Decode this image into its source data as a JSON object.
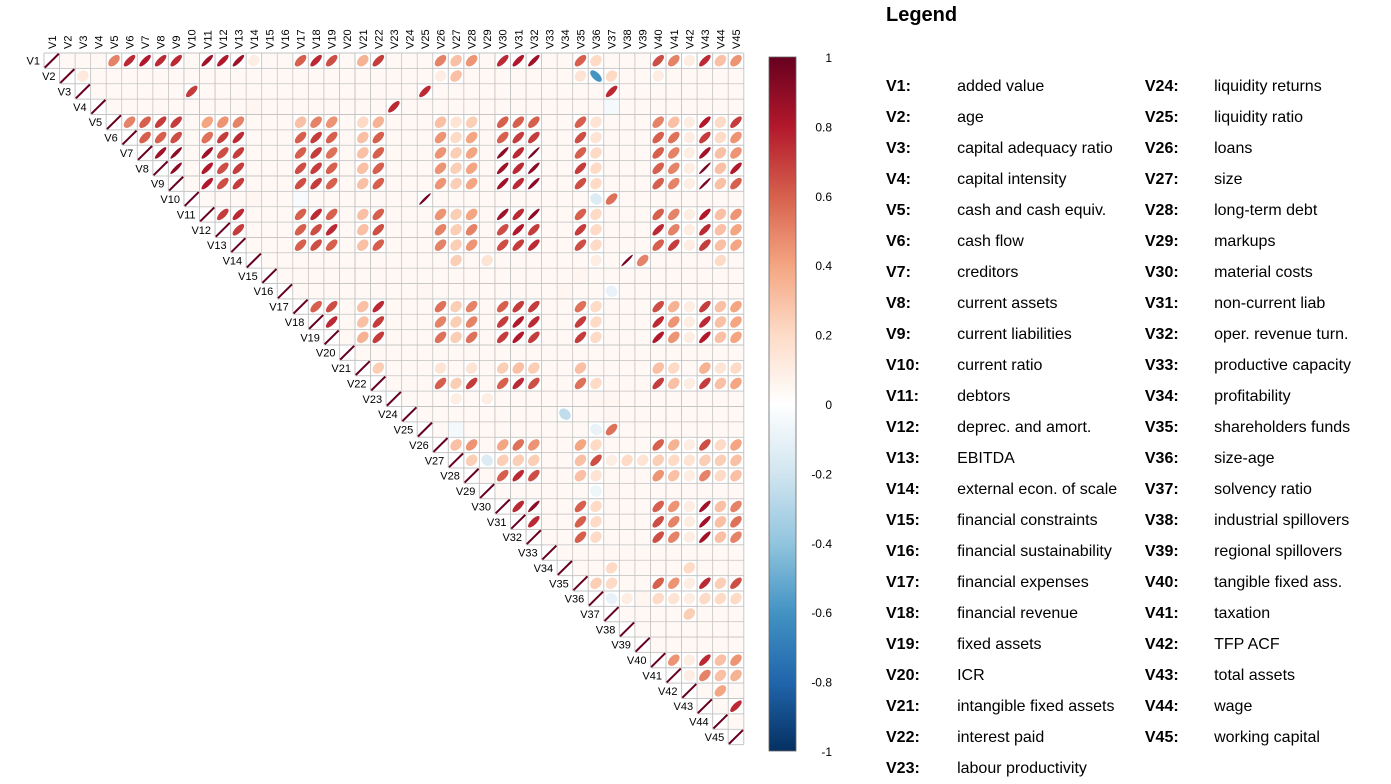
{
  "legend": {
    "title": "Legend",
    "entries": [
      {
        "code": "V1:",
        "label": "added value"
      },
      {
        "code": "V2:",
        "label": "age"
      },
      {
        "code": "V3:",
        "label": "capital adequacy ratio"
      },
      {
        "code": "V4:",
        "label": "capital intensity"
      },
      {
        "code": "V5:",
        "label": "cash and cash equiv."
      },
      {
        "code": "V6:",
        "label": "cash flow"
      },
      {
        "code": "V7:",
        "label": "creditors"
      },
      {
        "code": "V8:",
        "label": "current assets"
      },
      {
        "code": "V9:",
        "label": "current liabilities"
      },
      {
        "code": "V10:",
        "label": "current ratio"
      },
      {
        "code": "V11:",
        "label": "debtors"
      },
      {
        "code": "V12:",
        "label": "deprec. and amort."
      },
      {
        "code": "V13:",
        "label": "EBITDA"
      },
      {
        "code": "V14:",
        "label": "external econ. of scale"
      },
      {
        "code": "V15:",
        "label": "financial constraints"
      },
      {
        "code": "V16:",
        "label": "financial sustainability"
      },
      {
        "code": "V17:",
        "label": "financial expenses"
      },
      {
        "code": "V18:",
        "label": "financial revenue"
      },
      {
        "code": "V19:",
        "label": "fixed assets"
      },
      {
        "code": "V20:",
        "label": "ICR"
      },
      {
        "code": "V21:",
        "label": "intangible fixed assets"
      },
      {
        "code": "V22:",
        "label": "interest paid"
      },
      {
        "code": "V23:",
        "label": "labour productivity"
      },
      {
        "code": "V24:",
        "label": "liquidity returns"
      },
      {
        "code": "V25:",
        "label": "liquidity ratio"
      },
      {
        "code": "V26:",
        "label": "loans"
      },
      {
        "code": "V27:",
        "label": "size"
      },
      {
        "code": "V28:",
        "label": "long-term debt"
      },
      {
        "code": "V29:",
        "label": "markups"
      },
      {
        "code": "V30:",
        "label": "material costs"
      },
      {
        "code": "V31:",
        "label": "non-current liab"
      },
      {
        "code": "V32:",
        "label": "oper. revenue turn."
      },
      {
        "code": "V33:",
        "label": "productive capacity"
      },
      {
        "code": "V34:",
        "label": "profitability"
      },
      {
        "code": "V35:",
        "label": "shareholders funds"
      },
      {
        "code": "V36:",
        "label": "size-age"
      },
      {
        "code": "V37:",
        "label": "solvency ratio"
      },
      {
        "code": "V38:",
        "label": "industrial spillovers"
      },
      {
        "code": "V39:",
        "label": "regional spillovers"
      },
      {
        "code": "V40:",
        "label": "tangible fixed ass."
      },
      {
        "code": "V41:",
        "label": "taxation"
      },
      {
        "code": "V42:",
        "label": "TFP ACF"
      },
      {
        "code": "V43:",
        "label": "total assets"
      },
      {
        "code": "V44:",
        "label": "wage"
      },
      {
        "code": "V45:",
        "label": "working capital"
      }
    ]
  },
  "chart_data": {
    "type": "heatmap",
    "subtype": "correlation-ellipse-upper-triangle",
    "variables": [
      "V1",
      "V2",
      "V3",
      "V4",
      "V5",
      "V6",
      "V7",
      "V8",
      "V9",
      "V10",
      "V11",
      "V12",
      "V13",
      "V14",
      "V15",
      "V16",
      "V17",
      "V18",
      "V19",
      "V20",
      "V21",
      "V22",
      "V23",
      "V24",
      "V25",
      "V26",
      "V27",
      "V28",
      "V29",
      "V30",
      "V31",
      "V32",
      "V33",
      "V34",
      "V35",
      "V36",
      "V37",
      "V38",
      "V39",
      "V40",
      "V41",
      "V42",
      "V43",
      "V44",
      "V45"
    ],
    "diagonal": 1,
    "default_value": 0.04,
    "correlations": {
      "V1": {
        "V5": 0.5,
        "V6": 0.75,
        "V7": 0.8,
        "V8": 0.75,
        "V9": 0.75,
        "V11": 0.85,
        "V12": 0.8,
        "V13": 0.85,
        "V14": 0.1,
        "V17": 0.6,
        "V18": 0.75,
        "V19": 0.65,
        "V21": 0.35,
        "V22": 0.7,
        "V26": 0.5,
        "V27": 0.3,
        "V28": 0.45,
        "V30": 0.75,
        "V31": 0.8,
        "V32": 0.85,
        "V35": 0.6,
        "V36": 0.2,
        "V40": 0.65,
        "V41": 0.5,
        "V42": 0.1,
        "V43": 0.75,
        "V44": 0.3,
        "V45": 0.45
      },
      "V2": {
        "V3": 0.12,
        "V26": 0.1,
        "V27": 0.3,
        "V35": 0.15,
        "V36": -0.6,
        "V37": 0.2,
        "V40": 0.1
      },
      "V3": {
        "V10": 0.7,
        "V25": 0.75,
        "V37": 0.75
      },
      "V4": {
        "V14": 0.05,
        "V23": 0.75,
        "V37": -0.05
      },
      "V5": {
        "V6": 0.5,
        "V7": 0.6,
        "V8": 0.7,
        "V9": 0.7,
        "V11": 0.4,
        "V12": 0.45,
        "V13": 0.5,
        "V17": 0.3,
        "V18": 0.5,
        "V19": 0.45,
        "V21": 0.2,
        "V22": 0.35,
        "V26": 0.3,
        "V27": 0.15,
        "V28": 0.25,
        "V30": 0.6,
        "V31": 0.6,
        "V32": 0.6,
        "V35": 0.6,
        "V36": 0.15,
        "V40": 0.5,
        "V41": 0.3,
        "V42": 0.1,
        "V43": 0.8,
        "V44": 0.2,
        "V45": 0.7
      },
      "V6": {
        "V7": 0.6,
        "V8": 0.6,
        "V9": 0.65,
        "V11": 0.55,
        "V12": 0.7,
        "V13": 0.75,
        "V17": 0.6,
        "V18": 0.7,
        "V19": 0.6,
        "V21": 0.3,
        "V22": 0.6,
        "V26": 0.45,
        "V27": 0.2,
        "V28": 0.4,
        "V30": 0.6,
        "V31": 0.7,
        "V32": 0.7,
        "V35": 0.65,
        "V36": 0.15,
        "V40": 0.6,
        "V41": 0.55,
        "V42": 0.1,
        "V43": 0.7,
        "V44": 0.2,
        "V45": 0.45
      },
      "V7": {
        "V8": 0.85,
        "V9": 0.9,
        "V11": 0.85,
        "V12": 0.65,
        "V13": 0.7,
        "V17": 0.6,
        "V18": 0.7,
        "V19": 0.55,
        "V21": 0.3,
        "V22": 0.6,
        "V26": 0.45,
        "V27": 0.25,
        "V28": 0.4,
        "V30": 0.9,
        "V31": 0.75,
        "V32": 0.95,
        "V35": 0.6,
        "V36": 0.2,
        "V40": 0.6,
        "V41": 0.5,
        "V42": 0.1,
        "V43": 0.85,
        "V44": 0.3,
        "V45": 0.45
      },
      "V8": {
        "V9": 0.9,
        "V11": 0.8,
        "V12": 0.65,
        "V13": 0.7,
        "V17": 0.65,
        "V18": 0.7,
        "V19": 0.6,
        "V21": 0.3,
        "V22": 0.6,
        "V26": 0.45,
        "V27": 0.25,
        "V28": 0.4,
        "V30": 0.85,
        "V31": 0.75,
        "V32": 0.9,
        "V35": 0.7,
        "V36": 0.2,
        "V40": 0.6,
        "V41": 0.5,
        "V42": 0.1,
        "V43": 0.95,
        "V44": 0.3,
        "V45": 0.8
      },
      "V9": {
        "V11": 0.8,
        "V12": 0.65,
        "V13": 0.7,
        "V17": 0.65,
        "V18": 0.7,
        "V19": 0.6,
        "V21": 0.3,
        "V22": 0.6,
        "V26": 0.45,
        "V27": 0.25,
        "V28": 0.4,
        "V30": 0.85,
        "V31": 0.75,
        "V32": 0.9,
        "V35": 0.65,
        "V36": 0.2,
        "V40": 0.6,
        "V41": 0.5,
        "V42": 0.1,
        "V43": 0.95,
        "V44": 0.3,
        "V45": 0.6
      },
      "V10": {
        "V14": 0.05,
        "V17": -0.03,
        "V25": 0.95,
        "V36": -0.15,
        "V37": 0.55
      },
      "V11": {
        "V12": 0.7,
        "V13": 0.75,
        "V17": 0.6,
        "V18": 0.75,
        "V19": 0.6,
        "V21": 0.3,
        "V22": 0.6,
        "V26": 0.45,
        "V27": 0.25,
        "V28": 0.4,
        "V30": 0.85,
        "V31": 0.75,
        "V32": 0.9,
        "V35": 0.6,
        "V36": 0.2,
        "V40": 0.6,
        "V41": 0.5,
        "V42": 0.1,
        "V43": 0.8,
        "V44": 0.3,
        "V45": 0.45
      },
      "V12": {
        "V13": 0.7,
        "V17": 0.6,
        "V18": 0.65,
        "V19": 0.75,
        "V21": 0.3,
        "V22": 0.65,
        "V26": 0.5,
        "V27": 0.25,
        "V28": 0.5,
        "V30": 0.65,
        "V31": 0.8,
        "V32": 0.7,
        "V35": 0.7,
        "V36": 0.2,
        "V40": 0.75,
        "V41": 0.5,
        "V42": 0.1,
        "V43": 0.75,
        "V44": 0.3,
        "V45": 0.4
      },
      "V13": {
        "V17": 0.6,
        "V18": 0.65,
        "V19": 0.6,
        "V21": 0.3,
        "V22": 0.6,
        "V26": 0.5,
        "V27": 0.25,
        "V28": 0.45,
        "V30": 0.65,
        "V31": 0.7,
        "V32": 0.75,
        "V35": 0.65,
        "V36": 0.2,
        "V40": 0.6,
        "V41": 0.7,
        "V42": 0.1,
        "V43": 0.7,
        "V44": 0.3,
        "V45": 0.4
      },
      "V14": {
        "V27": 0.25,
        "V29": 0.15,
        "V36": 0.1,
        "V38": 0.95,
        "V39": 0.5,
        "V44": 0.2
      },
      "V15": {
        "V35": 0.05
      },
      "V16": {
        "V25": 0.05,
        "V34": 0.05,
        "V37": -0.1
      },
      "V17": {
        "V18": 0.6,
        "V19": 0.65,
        "V21": 0.3,
        "V22": 0.75,
        "V26": 0.55,
        "V27": 0.25,
        "V28": 0.5,
        "V30": 0.6,
        "V31": 0.7,
        "V32": 0.7,
        "V35": 0.55,
        "V36": 0.2,
        "V40": 0.65,
        "V41": 0.35,
        "V42": 0.1,
        "V43": 0.7,
        "V44": 0.3,
        "V45": 0.4
      },
      "V18": {
        "V19": 0.75,
        "V21": 0.3,
        "V22": 0.7,
        "V26": 0.5,
        "V27": 0.25,
        "V28": 0.5,
        "V30": 0.7,
        "V31": 0.8,
        "V32": 0.75,
        "V35": 0.7,
        "V36": 0.2,
        "V40": 0.75,
        "V41": 0.45,
        "V42": 0.1,
        "V43": 0.75,
        "V44": 0.3,
        "V45": 0.4
      },
      "V19": {
        "V21": 0.35,
        "V22": 0.7,
        "V26": 0.55,
        "V27": 0.25,
        "V28": 0.55,
        "V30": 0.7,
        "V31": 0.8,
        "V32": 0.7,
        "V35": 0.7,
        "V36": 0.2,
        "V40": 0.8,
        "V41": 0.45,
        "V42": 0.1,
        "V43": 0.8,
        "V44": 0.3,
        "V45": 0.4
      },
      "V21": {
        "V22": 0.25,
        "V26": 0.15,
        "V28": 0.15,
        "V30": 0.25,
        "V31": 0.3,
        "V32": 0.25,
        "V35": 0.3,
        "V40": 0.3,
        "V41": 0.2,
        "V43": 0.35,
        "V44": 0.15,
        "V45": 0.2
      },
      "V22": {
        "V26": 0.6,
        "V27": 0.25,
        "V28": 0.7,
        "V30": 0.6,
        "V31": 0.75,
        "V32": 0.65,
        "V35": 0.55,
        "V36": 0.2,
        "V40": 0.7,
        "V41": 0.3,
        "V42": 0.1,
        "V43": 0.7,
        "V44": 0.3,
        "V45": 0.4
      },
      "V23": {
        "V27": 0.1,
        "V29": 0.1,
        "V36": 0.05,
        "V37": 0.05
      },
      "V24": {
        "V34": -0.25,
        "V37": 0.05
      },
      "V25": {
        "V27": -0.05,
        "V36": -0.1,
        "V37": 0.55
      },
      "V26": {
        "V27": 0.3,
        "V28": 0.45,
        "V30": 0.4,
        "V31": 0.55,
        "V32": 0.45,
        "V35": 0.4,
        "V36": 0.2,
        "V40": 0.6,
        "V41": 0.35,
        "V42": 0.1,
        "V43": 0.65,
        "V44": 0.2,
        "V45": 0.4
      },
      "V27": {
        "V28": 0.25,
        "V29": -0.15,
        "V30": 0.25,
        "V31": 0.25,
        "V32": 0.25,
        "V35": 0.3,
        "V36": 0.65,
        "V37": 0.1,
        "V38": 0.2,
        "V39": 0.15,
        "V40": 0.25,
        "V41": 0.2,
        "V42": 0.15,
        "V43": 0.25,
        "V44": 0.25,
        "V45": 0.3
      },
      "V28": {
        "V30": 0.6,
        "V31": 0.75,
        "V32": 0.65,
        "V35": 0.3,
        "V36": 0.15,
        "V40": 0.45,
        "V41": 0.3,
        "V42": 0.1,
        "V43": 0.5,
        "V44": 0.2,
        "V45": 0.3
      },
      "V29": {
        "V36": -0.08,
        "V37": 0.05
      },
      "V30": {
        "V31": 0.75,
        "V32": 0.9,
        "V35": 0.6,
        "V36": 0.2,
        "V40": 0.6,
        "V41": 0.45,
        "V42": 0.1,
        "V43": 0.85,
        "V44": 0.3,
        "V45": 0.5
      },
      "V31": {
        "V32": 0.75,
        "V35": 0.6,
        "V36": 0.2,
        "V40": 0.65,
        "V41": 0.5,
        "V42": 0.1,
        "V43": 0.85,
        "V44": 0.3,
        "V45": 0.55
      },
      "V32": {
        "V35": 0.6,
        "V36": 0.2,
        "V40": 0.65,
        "V41": 0.5,
        "V42": 0.1,
        "V43": 0.85,
        "V44": 0.3,
        "V45": 0.5
      },
      "V34": {
        "V37": 0.2,
        "V42": 0.2
      },
      "V35": {
        "V36": 0.25,
        "V37": 0.2,
        "V40": 0.6,
        "V41": 0.45,
        "V42": 0.1,
        "V43": 0.75,
        "V44": 0.25,
        "V45": 0.65
      },
      "V36": {
        "V37": -0.1,
        "V38": 0.1,
        "V39": 0.05,
        "V40": 0.2,
        "V41": 0.15,
        "V42": 0.1,
        "V43": 0.2,
        "V44": 0.2,
        "V45": 0.2
      },
      "V37": {
        "V42": 0.25
      },
      "V40": {
        "V41": 0.45,
        "V42": 0.1,
        "V43": 0.75,
        "V44": 0.3,
        "V45": 0.45
      },
      "V41": {
        "V42": 0.1,
        "V43": 0.5,
        "V44": 0.3,
        "V45": 0.35
      },
      "V42": {
        "V44": 0.4
      },
      "V43": {
        "V45": 0.75
      }
    },
    "colorbar": {
      "ticks": [
        1,
        0.8,
        0.6,
        0.4,
        0.2,
        0,
        -0.2,
        -0.4,
        -0.6,
        -0.8,
        -1
      ],
      "tick_labels": [
        "1",
        "0.8",
        "0.6",
        "0.4",
        "0.2",
        "0",
        "-0.2",
        "-0.4",
        "-0.6",
        "-0.8",
        "-1"
      ],
      "colors": [
        "#67001F",
        "#B2182B",
        "#D6604D",
        "#F4A582",
        "#FDDBC7",
        "#FFFFFF",
        "#D1E5F0",
        "#92C5DE",
        "#4393C3",
        "#2166AC",
        "#053061"
      ]
    },
    "xlabel": "",
    "ylabel": ""
  }
}
